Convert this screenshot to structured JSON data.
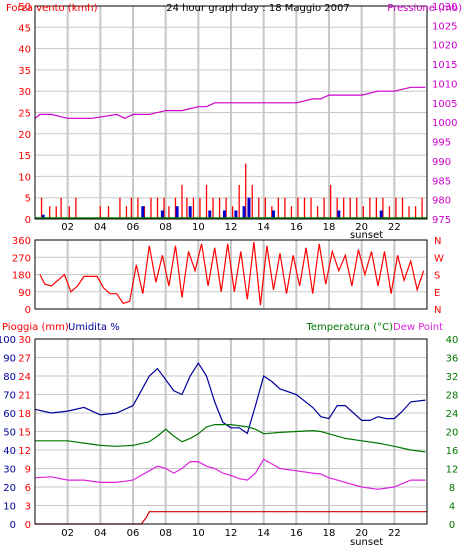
{
  "header": {
    "left_title": "Forza vento (kmh)",
    "center_title": "24 hour graph day : 18 Maggio 2007",
    "right_title": "Pressione (mb)"
  },
  "colors": {
    "wind": "#ff0000",
    "gust_green": "#008000",
    "gust_blue": "#0000cc",
    "pressure": "#cc00cc",
    "humidity": "#000099",
    "temperature": "#007700",
    "dewpoint": "#dd22dd",
    "rain": "#cc0000",
    "grid": "#c8c8c8",
    "frame": "#000000"
  },
  "chart_data": [
    {
      "type": "bar",
      "id": "wind_pressure",
      "title": "24 hour graph day : 18 Maggio 2007",
      "left_axis_label": "Forza vento (kmh)",
      "right_axis_label": "Pressione (mb)",
      "left_ylim": [
        0,
        50
      ],
      "left_ticks": [
        0,
        5,
        10,
        15,
        20,
        25,
        30,
        35,
        40,
        45,
        50
      ],
      "right_ylim": [
        975,
        1030
      ],
      "right_ticks": [
        975,
        980,
        985,
        990,
        995,
        1000,
        1005,
        1010,
        1015,
        1020,
        1025,
        1030
      ],
      "xlim": [
        0,
        24
      ],
      "x_ticks": [
        "02",
        "04",
        "06",
        "08",
        "10",
        "12",
        "14",
        "16",
        "18",
        "20",
        "22"
      ],
      "x_tick_hours": [
        2,
        4,
        6,
        8,
        10,
        12,
        14,
        16,
        18,
        20,
        22
      ],
      "sunset_label": "sunset",
      "sunset_hour": 20.3,
      "grid": true,
      "series": [
        {
          "name": "Pressione (mb)",
          "type": "line",
          "x": [
            0,
            0.3,
            0.5,
            1.0,
            2.0,
            3.5,
            5.0,
            5.5,
            6.0,
            7.0,
            8.0,
            9.0,
            10.0,
            10.5,
            11.0,
            12.0,
            13.0,
            14.0,
            15.0,
            16.0,
            17.0,
            17.5,
            18.0,
            19.0,
            20.0,
            21.0,
            22.0,
            23.0,
            23.9
          ],
          "values": [
            1001,
            1002,
            1002,
            1002,
            1001,
            1001,
            1002,
            1001,
            1002,
            1002,
            1003,
            1003,
            1004,
            1004,
            1005,
            1005,
            1005,
            1005,
            1005,
            1005,
            1006,
            1006,
            1007,
            1007,
            1007,
            1008,
            1008,
            1009,
            1009
          ]
        },
        {
          "name": "wind",
          "type": "bars",
          "x": [
            0.4,
            0.9,
            1.3,
            1.6,
            2.1,
            2.5,
            4.0,
            4.5,
            5.2,
            5.6,
            5.9,
            6.3,
            6.7,
            7.1,
            7.5,
            7.9,
            8.2,
            8.6,
            9.0,
            9.3,
            9.7,
            10.1,
            10.5,
            10.9,
            11.3,
            11.7,
            12.1,
            12.5,
            12.9,
            13.3,
            13.7,
            14.1,
            14.5,
            14.9,
            15.3,
            15.7,
            16.1,
            16.5,
            16.9,
            17.3,
            17.7,
            18.1,
            18.5,
            18.9,
            19.3,
            19.7,
            20.1,
            20.5,
            20.9,
            21.3,
            21.7,
            22.1,
            22.5,
            22.9,
            23.3,
            23.7
          ],
          "values": [
            5,
            3,
            3,
            5,
            3,
            5,
            3,
            3,
            5,
            3,
            5,
            5,
            3,
            5,
            5,
            5,
            3,
            5,
            8,
            5,
            5,
            5,
            8,
            5,
            5,
            5,
            3,
            8,
            13,
            8,
            5,
            5,
            3,
            5,
            5,
            3,
            5,
            5,
            5,
            3,
            5,
            8,
            5,
            5,
            5,
            5,
            3,
            5,
            5,
            5,
            3,
            5,
            5,
            3,
            3,
            5
          ]
        },
        {
          "name": "gust",
          "type": "bars",
          "x": [
            0.5,
            6.6,
            7.8,
            8.7,
            9.5,
            10.7,
            11.6,
            12.3,
            12.8,
            13.1,
            14.6,
            18.6,
            21.2
          ],
          "values": [
            1,
            3,
            2,
            3,
            3,
            2,
            2,
            2,
            3,
            5,
            2,
            2,
            2
          ]
        }
      ]
    },
    {
      "type": "line",
      "id": "wind_direction",
      "right_axis_label": "",
      "ylim": [
        0,
        360
      ],
      "left_ticks": [
        0,
        90,
        180,
        270,
        360
      ],
      "right_ticks": [
        "N",
        "E",
        "S",
        "W",
        "N"
      ],
      "xlim": [
        0,
        24
      ],
      "grid": true,
      "series": [
        {
          "name": "direction",
          "x": [
            0.3,
            0.6,
            1.0,
            1.4,
            1.8,
            2.2,
            2.6,
            3.0,
            3.4,
            3.8,
            4.2,
            4.6,
            5.0,
            5.4,
            5.8,
            6.2,
            6.6,
            7.0,
            7.4,
            7.8,
            8.2,
            8.6,
            9.0,
            9.4,
            9.8,
            10.2,
            10.6,
            11.0,
            11.4,
            11.8,
            12.2,
            12.6,
            13.0,
            13.4,
            13.8,
            14.2,
            14.6,
            15.0,
            15.4,
            15.8,
            16.2,
            16.6,
            17.0,
            17.4,
            17.8,
            18.2,
            18.6,
            19.0,
            19.4,
            19.8,
            20.2,
            20.6,
            21.0,
            21.4,
            21.8,
            22.2,
            22.6,
            23.0,
            23.4,
            23.8
          ],
          "values": [
            180,
            130,
            120,
            150,
            180,
            90,
            120,
            170,
            170,
            170,
            110,
            80,
            80,
            30,
            40,
            230,
            80,
            330,
            140,
            280,
            120,
            330,
            60,
            300,
            200,
            340,
            120,
            320,
            90,
            340,
            90,
            300,
            50,
            350,
            20,
            330,
            100,
            290,
            80,
            280,
            120,
            320,
            80,
            340,
            130,
            300,
            200,
            280,
            120,
            310,
            180,
            300,
            120,
            300,
            80,
            280,
            150,
            250,
            100,
            200
          ]
        }
      ]
    },
    {
      "type": "line",
      "id": "rain_humidity_temp",
      "left_axis_label": "Pioggia (mm)",
      "left2_axis_label": "Umidita %",
      "right_axis_label": "Temperatura (°C)",
      "right2_axis_label": "Dew Point",
      "rain_ylim": [
        0,
        30
      ],
      "rain_ticks": [
        0,
        3,
        6,
        9,
        12,
        15,
        18,
        21,
        24,
        27,
        30
      ],
      "humidity_ylim": [
        0,
        100
      ],
      "humidity_ticks": [
        0,
        10,
        20,
        30,
        40,
        50,
        60,
        70,
        80,
        90,
        100
      ],
      "temp_ylim": [
        0,
        40
      ],
      "temp_ticks": [
        0,
        4,
        8,
        12,
        16,
        20,
        24,
        28,
        32,
        36,
        40
      ],
      "xlim": [
        0,
        24
      ],
      "x_ticks": [
        "02",
        "04",
        "06",
        "08",
        "10",
        "12",
        "14",
        "16",
        "18",
        "20",
        "22"
      ],
      "sunset_label": "sunset",
      "grid": true,
      "series": [
        {
          "name": "Umidita %",
          "axis": "humidity",
          "x": [
            0,
            1,
            2,
            3,
            4,
            5,
            6,
            6.5,
            7,
            7.5,
            8,
            8.5,
            9,
            9.5,
            10,
            10.5,
            11,
            11.5,
            12,
            12.5,
            13,
            13.5,
            14,
            14.5,
            15,
            16,
            17,
            17.5,
            18,
            18.5,
            19,
            19.5,
            20,
            20.5,
            21,
            21.5,
            22,
            22.5,
            23,
            23.9
          ],
          "values": [
            62,
            60,
            61,
            63,
            59,
            60,
            64,
            72,
            80,
            84,
            78,
            72,
            70,
            80,
            87,
            80,
            66,
            55,
            52,
            52,
            49,
            64,
            80,
            77,
            73,
            70,
            63,
            58,
            57,
            64,
            64,
            60,
            56,
            56,
            58,
            57,
            57,
            61,
            66,
            67
          ]
        },
        {
          "name": "Temperatura (°C)",
          "axis": "temp",
          "x": [
            0,
            1,
            2,
            3,
            4,
            5,
            6,
            7,
            7.5,
            8,
            8.5,
            9,
            9.5,
            10,
            10.5,
            11,
            12,
            13,
            13.5,
            14,
            15,
            16,
            17,
            17.5,
            18,
            19,
            20,
            21,
            22,
            23,
            23.9
          ],
          "values": [
            18,
            18,
            18,
            17.5,
            17,
            16.8,
            17,
            17.8,
            19,
            20.5,
            19,
            17.8,
            18.5,
            19.5,
            21,
            21.5,
            21.5,
            21,
            20.5,
            19.5,
            19.8,
            20,
            20.2,
            20,
            19.5,
            18.5,
            18,
            17.5,
            16.8,
            16,
            15.6
          ]
        },
        {
          "name": "Dew Point",
          "axis": "temp",
          "x": [
            0,
            1,
            2,
            3,
            4,
            5,
            6,
            6.5,
            7,
            7.5,
            8,
            8.5,
            9,
            9.5,
            10,
            10.5,
            11,
            11.5,
            12,
            12.5,
            13,
            13.5,
            14,
            14.5,
            15,
            16,
            17,
            17.5,
            18,
            18.5,
            19,
            20,
            21,
            22,
            23,
            23.9
          ],
          "values": [
            10,
            10.2,
            9.5,
            9.5,
            9,
            9,
            9.5,
            10.5,
            11.5,
            12.5,
            12,
            11,
            12,
            13.5,
            13.5,
            12.5,
            12,
            11,
            10.5,
            9.8,
            9.5,
            11,
            14,
            13,
            12,
            11.5,
            11,
            10.8,
            10,
            9.5,
            9,
            8,
            7.5,
            8,
            9.5,
            9.5
          ]
        },
        {
          "name": "Pioggia (mm)",
          "axis": "rain",
          "x": [
            0,
            6.5,
            6.8,
            7.0,
            24
          ],
          "values": [
            0,
            0,
            1,
            2,
            2
          ]
        }
      ]
    }
  ]
}
